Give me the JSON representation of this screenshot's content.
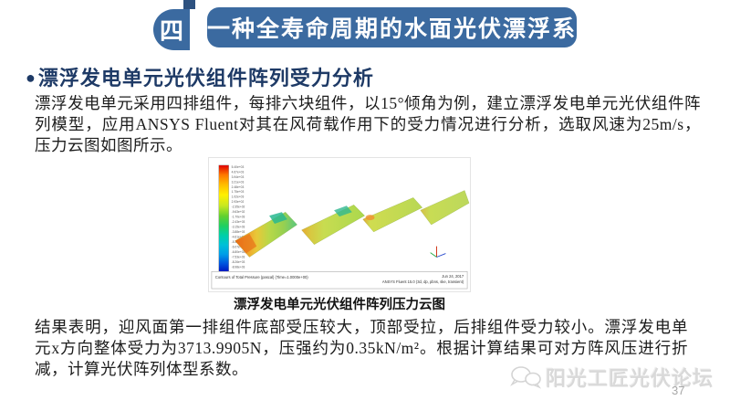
{
  "header": {
    "section_number": "四",
    "title": "一种全寿命周期的水面光伏漂浮系",
    "accent_color": "#3b6aa0"
  },
  "heading": {
    "bullet": "●",
    "text": "漂浮发电单元光伏组件阵列受力分析",
    "color": "#1e3a66"
  },
  "paragraph1": "漂浮发电单元采用四排组件，每排六块组件，以15°倾角为例，建立漂浮发电单元光伏组件阵列模型，应用ANSYS Fluent对其在风荷载作用下的受力情况进行分析，选取风速为25m/s，压力云图如图所示。",
  "figure": {
    "caption": "漂浮发电单元光伏组件阵列压力云图",
    "legend_labels": [
      "5.40e+03",
      "4.67e+03",
      "3.94e+03",
      "3.21e+03",
      "2.48e+03",
      "1.75e+03",
      "1.02e+03",
      "2.93e+02",
      "-2.35e+02",
      "-9.63e+02",
      "-1.70e+03",
      "-2.43e+03",
      "-3.15e+03",
      "-3.88e+03",
      "-4.61e+03",
      "-5.34e+03",
      "-6.07e+03",
      "-6.80e+03",
      "-7.53e+03",
      "-8.26e+03",
      "-8.98e+03"
    ],
    "footer_left": "Contours of Total Pressure (pascal)  (Time=1.0000e+00)",
    "footer_right_line1": "Jun 24, 2017",
    "footer_right_line2": "ANSYS Fluent 15.0 (3d, dp, pbns, ske, transient)"
  },
  "paragraph2": "结果表明，迎风面第一排组件底部受压较大，顶部受拉，后排组件受力较小。漂浮发电单元x方向整体受力为3713.9905N，压强约为0.35kN/m²。根据计算结果可对方阵风压进行折减，计算光伏阵列体型系数。",
  "footer": {
    "watermark": "阳光工匠光伏论坛",
    "page_number": "37"
  }
}
